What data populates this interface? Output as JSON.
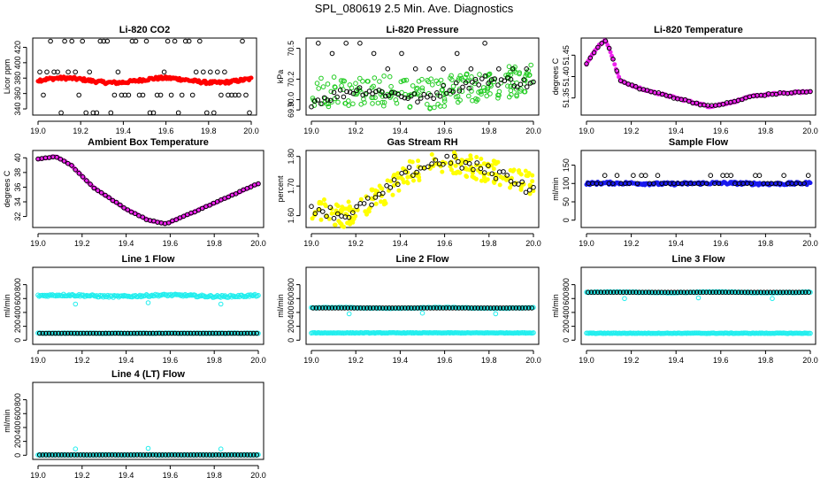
{
  "title": "SPL_080619  2.5 Min. Ave. Diagnostics",
  "colors": {
    "red": "#ff0000",
    "green": "#22cc22",
    "magenta": "#ee22ee",
    "yellow": "#ffff00",
    "blue": "#1a1aee",
    "cyan": "#22eeee",
    "black": "#000000"
  },
  "chart_data": [
    {
      "type": "scatter",
      "title": "Li-820 CO2",
      "ylabel": "Licor ppm",
      "xlim": [
        19.0,
        20.0
      ],
      "ylim": [
        332,
        432
      ],
      "xticks": [
        "19.0",
        "19.2",
        "19.4",
        "19.6",
        "19.8",
        "20.0"
      ],
      "yticks": [
        "340",
        "360",
        "380",
        "400",
        "420"
      ],
      "series": [
        {
          "name": "Li-820 CO2 (open circles)",
          "color": "black",
          "marker": "open",
          "pattern": "scatter",
          "n": 60,
          "levels": [
            335,
            358,
            388,
            428
          ],
          "x_range": [
            19.0,
            20.0
          ]
        },
        {
          "name": "Li-820 CO2 (dense)",
          "color": "red",
          "marker": "filled",
          "pattern": "dense",
          "base": 377,
          "amp": 3,
          "noise": 2,
          "x_range": [
            19.0,
            20.0
          ]
        }
      ]
    },
    {
      "type": "scatter",
      "title": "Li-820 Pressure",
      "ylabel": "kPa",
      "xlim": [
        19.0,
        20.0
      ],
      "ylim": [
        69.85,
        70.6
      ],
      "xticks": [
        "19.0",
        "19.2",
        "19.4",
        "19.6",
        "19.8",
        "20.0"
      ],
      "yticks": [
        "69.9",
        "70.0",
        "70.2",
        "70.5"
      ],
      "series": [
        {
          "name": "Li-820 Pressure (dense)",
          "color": "green",
          "marker": "open",
          "pattern": "band",
          "x_range": [
            19.0,
            20.0
          ],
          "points_x": [
            19.0,
            19.2,
            19.4,
            19.5,
            19.6,
            19.8,
            20.0
          ],
          "points_y": [
            70.05,
            70.1,
            70.08,
            70.05,
            70.08,
            70.15,
            70.2
          ],
          "spread": 0.15
        },
        {
          "name": "Li-820 Pressure (open circles)",
          "color": "black",
          "marker": "open",
          "pattern": "line",
          "x_range": [
            19.0,
            20.0
          ],
          "points_x": [
            19.0,
            19.2,
            19.4,
            19.5,
            19.6,
            19.8,
            20.0
          ],
          "points_y": [
            69.98,
            70.1,
            70.05,
            70.0,
            70.1,
            70.2,
            70.15
          ],
          "noise": 0.05,
          "n": 70
        },
        {
          "name": "Li-820 Pressure (outliers)",
          "color": "black",
          "marker": "open",
          "pattern": "scatter",
          "n": 16,
          "levels": [
            70.3,
            70.45,
            70.55
          ],
          "x_range": [
            19.0,
            20.0
          ]
        }
      ]
    },
    {
      "type": "scatter",
      "title": "Li-820 Temperature",
      "ylabel": "degrees C",
      "xlim": [
        19.0,
        20.0
      ],
      "ylim": [
        51.31,
        51.49
      ],
      "xticks": [
        "19.0",
        "19.2",
        "19.4",
        "19.6",
        "19.8",
        "20.0"
      ],
      "yticks": [
        "51.35",
        "51.40",
        "51.45"
      ],
      "series": [
        {
          "name": "Li-820 Temperature (dense)",
          "color": "magenta",
          "marker": "filled",
          "pattern": "line",
          "x_range": [
            19.0,
            20.0
          ],
          "points_x": [
            19.0,
            19.05,
            19.08,
            19.1,
            19.15,
            19.25,
            19.4,
            19.55,
            19.65,
            19.75,
            19.85,
            20.0
          ],
          "points_y": [
            51.43,
            51.47,
            51.485,
            51.47,
            51.39,
            51.37,
            51.35,
            51.33,
            51.34,
            51.355,
            51.36,
            51.365
          ],
          "noise": 0.002,
          "n": 160
        },
        {
          "name": "Li-820 Temperature (open circles)",
          "color": "black",
          "marker": "open",
          "pattern": "line",
          "x_range": [
            19.0,
            20.0
          ],
          "points_x": [
            19.0,
            19.05,
            19.08,
            19.1,
            19.15,
            19.25,
            19.4,
            19.55,
            19.65,
            19.75,
            19.85,
            20.0
          ],
          "points_y": [
            51.43,
            51.47,
            51.485,
            51.47,
            51.39,
            51.37,
            51.35,
            51.33,
            51.34,
            51.355,
            51.36,
            51.365
          ],
          "noise": 0.002,
          "n": 60
        }
      ]
    },
    {
      "type": "scatter",
      "title": "Ambient Box Temperature",
      "ylabel": "degrees C",
      "xlim": [
        19.0,
        20.0
      ],
      "ylim": [
        30.5,
        41
      ],
      "xticks": [
        "19.0",
        "19.2",
        "19.4",
        "19.6",
        "19.8",
        "20.0"
      ],
      "yticks": [
        "32",
        "34",
        "36",
        "38",
        "40"
      ],
      "series": [
        {
          "name": "Ambient Box Temperature (dense)",
          "color": "magenta",
          "marker": "filled",
          "pattern": "line",
          "x_range": [
            19.0,
            20.0
          ],
          "points_x": [
            19.0,
            19.08,
            19.15,
            19.25,
            19.4,
            19.5,
            19.58,
            19.7,
            19.85,
            20.0
          ],
          "points_y": [
            39.8,
            40.2,
            39.0,
            36.0,
            33.0,
            31.5,
            31.0,
            32.5,
            34.5,
            36.5
          ],
          "noise": 0.05,
          "n": 160
        },
        {
          "name": "Ambient Box Temperature (open circles)",
          "color": "black",
          "marker": "open",
          "pattern": "line",
          "x_range": [
            19.0,
            20.0
          ],
          "points_x": [
            19.0,
            19.08,
            19.15,
            19.25,
            19.4,
            19.5,
            19.58,
            19.7,
            19.85,
            20.0
          ],
          "points_y": [
            39.8,
            40.2,
            39.0,
            36.0,
            33.0,
            31.5,
            31.0,
            32.5,
            34.5,
            36.5
          ],
          "noise": 0.05,
          "n": 60
        }
      ]
    },
    {
      "type": "scatter",
      "title": "Gas Stream RH",
      "ylabel": "percent",
      "xlim": [
        19.0,
        20.0
      ],
      "ylim": [
        1.56,
        1.82
      ],
      "xticks": [
        "19.0",
        "19.2",
        "19.4",
        "19.6",
        "19.8",
        "20.0"
      ],
      "yticks": [
        "1.60",
        "1.70",
        "1.80"
      ],
      "series": [
        {
          "name": "Gas Stream RH (dense)",
          "color": "yellow",
          "marker": "filled",
          "pattern": "band",
          "x_range": [
            19.0,
            20.0
          ],
          "points_x": [
            19.0,
            19.15,
            19.3,
            19.45,
            19.6,
            19.75,
            19.9,
            20.0
          ],
          "points_y": [
            1.63,
            1.6,
            1.66,
            1.75,
            1.79,
            1.76,
            1.73,
            1.71
          ],
          "spread": 0.04
        },
        {
          "name": "Gas Stream RH (open circles)",
          "color": "black",
          "marker": "open",
          "pattern": "line",
          "x_range": [
            19.0,
            20.0
          ],
          "points_x": [
            19.0,
            19.15,
            19.3,
            19.45,
            19.6,
            19.75,
            19.9,
            20.0
          ],
          "points_y": [
            1.63,
            1.6,
            1.66,
            1.75,
            1.79,
            1.76,
            1.73,
            1.68
          ],
          "noise": 0.02,
          "n": 60
        }
      ]
    },
    {
      "type": "scatter",
      "title": "Sample Flow",
      "ylabel": "ml/min",
      "xlim": [
        19.0,
        20.0
      ],
      "ylim": [
        -20,
        190
      ],
      "xticks": [
        "19.0",
        "19.2",
        "19.4",
        "19.6",
        "19.8",
        "20.0"
      ],
      "yticks": [
        "0",
        "50",
        "100",
        "150"
      ],
      "series": [
        {
          "name": "Sample Flow (dense)",
          "color": "blue",
          "marker": "filled",
          "pattern": "dense",
          "base": 100,
          "amp": 1,
          "noise": 4,
          "x_range": [
            19.0,
            20.0
          ]
        },
        {
          "name": "Sample Flow (open circles)",
          "color": "black",
          "marker": "open",
          "pattern": "scatter",
          "n": 55,
          "levels": [
            100,
            100,
            100,
            122
          ],
          "x_range": [
            19.0,
            20.0
          ]
        }
      ]
    },
    {
      "type": "scatter",
      "title": "Line 1 Flow",
      "ylabel": "ml/min",
      "xlim": [
        19.0,
        20.0
      ],
      "ylim": [
        -60,
        1050
      ],
      "xticks": [
        "19.0",
        "19.2",
        "19.4",
        "19.6",
        "19.8",
        "20.0"
      ],
      "yticks": [
        "0",
        "200",
        "400",
        "600",
        "800"
      ],
      "series": [
        {
          "name": "Line 1 Flow (cyan dense)",
          "color": "cyan",
          "marker": "open",
          "pattern": "dense",
          "base": 640,
          "amp": 10,
          "noise": 15,
          "x_range": [
            19.0,
            20.0
          ]
        },
        {
          "name": "Line 1 Flow (cyan low)",
          "color": "cyan",
          "marker": "open",
          "pattern": "dense",
          "base": 100,
          "amp": 0,
          "noise": 4,
          "x_range": [
            19.0,
            20.0
          ]
        },
        {
          "name": "Line 1 Flow (open circles)",
          "color": "black",
          "marker": "open",
          "pattern": "scatter",
          "n": 70,
          "levels": [
            100
          ],
          "x_range": [
            19.0,
            20.0
          ]
        },
        {
          "name": "Line 1 Flow (dips)",
          "color": "cyan",
          "marker": "open",
          "pattern": "points",
          "x": [
            19.17,
            19.5,
            19.83
          ],
          "y": [
            520,
            540,
            520
          ]
        }
      ]
    },
    {
      "type": "scatter",
      "title": "Line 2 Flow",
      "ylabel": "ml/min",
      "xlim": [
        19.0,
        20.0
      ],
      "ylim": [
        -60,
        1050
      ],
      "xticks": [
        "19.0",
        "19.2",
        "19.4",
        "19.6",
        "19.8",
        "20.0"
      ],
      "yticks": [
        "0",
        "200",
        "400",
        "600",
        "800"
      ],
      "series": [
        {
          "name": "Line 2 Flow (cyan high)",
          "color": "cyan",
          "marker": "open",
          "pattern": "dense",
          "base": 465,
          "amp": 5,
          "noise": 5,
          "x_range": [
            19.0,
            20.0
          ]
        },
        {
          "name": "Line 2 Flow (cyan low)",
          "color": "cyan",
          "marker": "open",
          "pattern": "dense",
          "base": 105,
          "amp": 0,
          "noise": 4,
          "x_range": [
            19.0,
            20.0
          ]
        },
        {
          "name": "Line 2 Flow (open circles)",
          "color": "black",
          "marker": "open",
          "pattern": "scatter",
          "n": 70,
          "levels": [
            465
          ],
          "x_range": [
            19.0,
            20.0
          ]
        },
        {
          "name": "Line 2 Flow (dips)",
          "color": "cyan",
          "marker": "open",
          "pattern": "points",
          "x": [
            19.17,
            19.5,
            19.83
          ],
          "y": [
            380,
            390,
            380
          ]
        }
      ]
    },
    {
      "type": "scatter",
      "title": "Line 3 Flow",
      "ylabel": "ml/min",
      "xlim": [
        19.0,
        20.0
      ],
      "ylim": [
        -60,
        1050
      ],
      "xticks": [
        "19.0",
        "19.2",
        "19.4",
        "19.6",
        "19.8",
        "20.0"
      ],
      "yticks": [
        "0",
        "200",
        "400",
        "600",
        "800"
      ],
      "series": [
        {
          "name": "Line 3 Flow (cyan high)",
          "color": "cyan",
          "marker": "open",
          "pattern": "dense",
          "base": 690,
          "amp": 5,
          "noise": 5,
          "x_range": [
            19.0,
            20.0
          ]
        },
        {
          "name": "Line 3 Flow (cyan low)",
          "color": "cyan",
          "marker": "open",
          "pattern": "dense",
          "base": 100,
          "amp": 0,
          "noise": 4,
          "x_range": [
            19.0,
            20.0
          ]
        },
        {
          "name": "Line 3 Flow (open circles)",
          "color": "black",
          "marker": "open",
          "pattern": "scatter",
          "n": 70,
          "levels": [
            690
          ],
          "x_range": [
            19.0,
            20.0
          ]
        },
        {
          "name": "Line 3 Flow (dips)",
          "color": "cyan",
          "marker": "open",
          "pattern": "points",
          "x": [
            19.17,
            19.5,
            19.83
          ],
          "y": [
            600,
            610,
            600
          ]
        }
      ]
    },
    {
      "type": "scatter",
      "title": "Line 4 (LT) Flow",
      "ylabel": "ml/min",
      "xlim": [
        19.0,
        20.0
      ],
      "ylim": [
        -60,
        1050
      ],
      "xticks": [
        "19.0",
        "19.2",
        "19.4",
        "19.6",
        "19.8",
        "20.0"
      ],
      "yticks": [
        "0",
        "200",
        "400",
        "600",
        "800"
      ],
      "series": [
        {
          "name": "Line 4 (LT) Flow (cyan)",
          "color": "cyan",
          "marker": "open",
          "pattern": "dense",
          "base": 5,
          "amp": 0,
          "noise": 3,
          "x_range": [
            19.0,
            20.0
          ]
        },
        {
          "name": "Line 4 (LT) Flow (open circles)",
          "color": "black",
          "marker": "open",
          "pattern": "scatter",
          "n": 70,
          "levels": [
            5
          ],
          "x_range": [
            19.0,
            20.0
          ]
        },
        {
          "name": "Line 4 (LT) Flow (spikes)",
          "color": "cyan",
          "marker": "open",
          "pattern": "points",
          "x": [
            19.17,
            19.5,
            19.83
          ],
          "y": [
            90,
            100,
            90
          ]
        }
      ]
    }
  ]
}
